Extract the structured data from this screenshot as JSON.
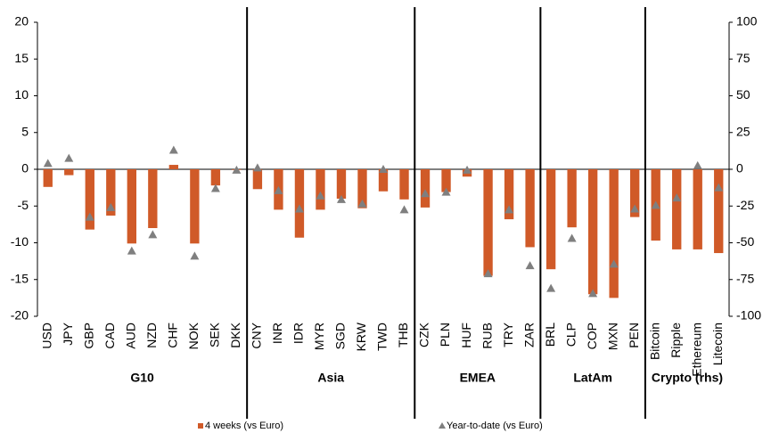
{
  "chart_data": {
    "type": "bar_scatter",
    "groups": [
      {
        "name": "G10",
        "categories": [
          "USD",
          "JPY",
          "GBP",
          "CAD",
          "AUD",
          "NZD",
          "CHF",
          "NOK",
          "SEK",
          "DKK"
        ]
      },
      {
        "name": "Asia",
        "categories": [
          "CNY",
          "INR",
          "IDR",
          "MYR",
          "SGD",
          "KRW",
          "TWD",
          "THB"
        ]
      },
      {
        "name": "EMEA",
        "categories": [
          "CZK",
          "PLN",
          "HUF",
          "RUB",
          "TRY",
          "ZAR"
        ]
      },
      {
        "name": "LatAm",
        "categories": [
          "BRL",
          "CLP",
          "COP",
          "MXN",
          "PEN"
        ]
      },
      {
        "name": "Crypto (rhs)",
        "categories": [
          "Bitcoin",
          "Ripple",
          "Ethereum",
          "Litecoin"
        ]
      }
    ],
    "series": [
      {
        "name": "4 weeks (vs Euro)",
        "type": "bar",
        "color": "#d05a28",
        "values": [
          -2.4,
          -0.8,
          -8.2,
          -6.3,
          -10.1,
          -8.0,
          0.6,
          -10.1,
          -2.2,
          -0.1,
          -2.7,
          -5.5,
          -9.3,
          -5.5,
          -4.0,
          -5.3,
          -3.0,
          -4.1,
          -5.2,
          -3.1,
          -1.0,
          -14.5,
          -6.8,
          -10.6,
          -13.6,
          -7.9,
          -17.0,
          -17.5,
          -6.5,
          -9.7,
          -10.9,
          -10.9,
          -11.4
        ]
      },
      {
        "name": "Year-to-date (vs Euro)",
        "type": "scatter",
        "marker": "triangle",
        "color": "#7f7f7f",
        "values": [
          0.8,
          1.5,
          -6.5,
          -5.2,
          -11.1,
          -8.9,
          2.6,
          -11.8,
          -2.6,
          -0.1,
          0.2,
          -2.9,
          -5.4,
          -3.6,
          -4.1,
          -4.7,
          0.0,
          -5.5,
          -3.3,
          -3.1,
          -0.1,
          -14.2,
          -5.5,
          -13.1,
          -16.2,
          -9.4,
          -16.9,
          -12.9,
          -5.4,
          -4.9,
          -3.9,
          0.5,
          -2.5
        ]
      }
    ],
    "ylim": [
      -20,
      20
    ],
    "yticks": [
      -20,
      -15,
      -10,
      -5,
      0,
      5,
      10,
      15,
      20
    ],
    "y2lim": [
      -100,
      100
    ],
    "y2ticks": [
      -100,
      -75,
      -50,
      -25,
      0,
      25,
      50,
      75,
      100
    ],
    "grid": false
  }
}
